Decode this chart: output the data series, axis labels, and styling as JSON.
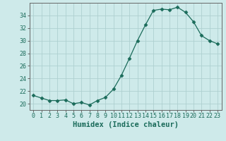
{
  "xlabel": "Humidex (Indice chaleur)",
  "ylabel": "",
  "x": [
    0,
    1,
    2,
    3,
    4,
    5,
    6,
    7,
    8,
    9,
    10,
    11,
    12,
    13,
    14,
    15,
    16,
    17,
    18,
    19,
    20,
    21,
    22,
    23
  ],
  "y": [
    21.3,
    20.9,
    20.5,
    20.5,
    20.6,
    20.0,
    20.2,
    19.8,
    20.5,
    21.0,
    22.3,
    24.5,
    27.2,
    30.0,
    32.5,
    34.8,
    35.0,
    34.9,
    35.3,
    34.5,
    33.0,
    30.8,
    30.0,
    29.5
  ],
  "line_color": "#1a6b5a",
  "marker": "D",
  "marker_size": 2.5,
  "bg_color": "#ceeaea",
  "grid_color": "#aed0d0",
  "tick_label_color": "#1a6b5a",
  "axis_color": "#666666",
  "xlabel_color": "#1a6b5a",
  "ylim": [
    19,
    36
  ],
  "yticks": [
    20,
    22,
    24,
    26,
    28,
    30,
    32,
    34
  ],
  "xticks": [
    0,
    1,
    2,
    3,
    4,
    5,
    6,
    7,
    8,
    9,
    10,
    11,
    12,
    13,
    14,
    15,
    16,
    17,
    18,
    19,
    20,
    21,
    22,
    23
  ],
  "xlabel_fontsize": 7.5,
  "tick_fontsize": 6.0,
  "linewidth": 0.9
}
